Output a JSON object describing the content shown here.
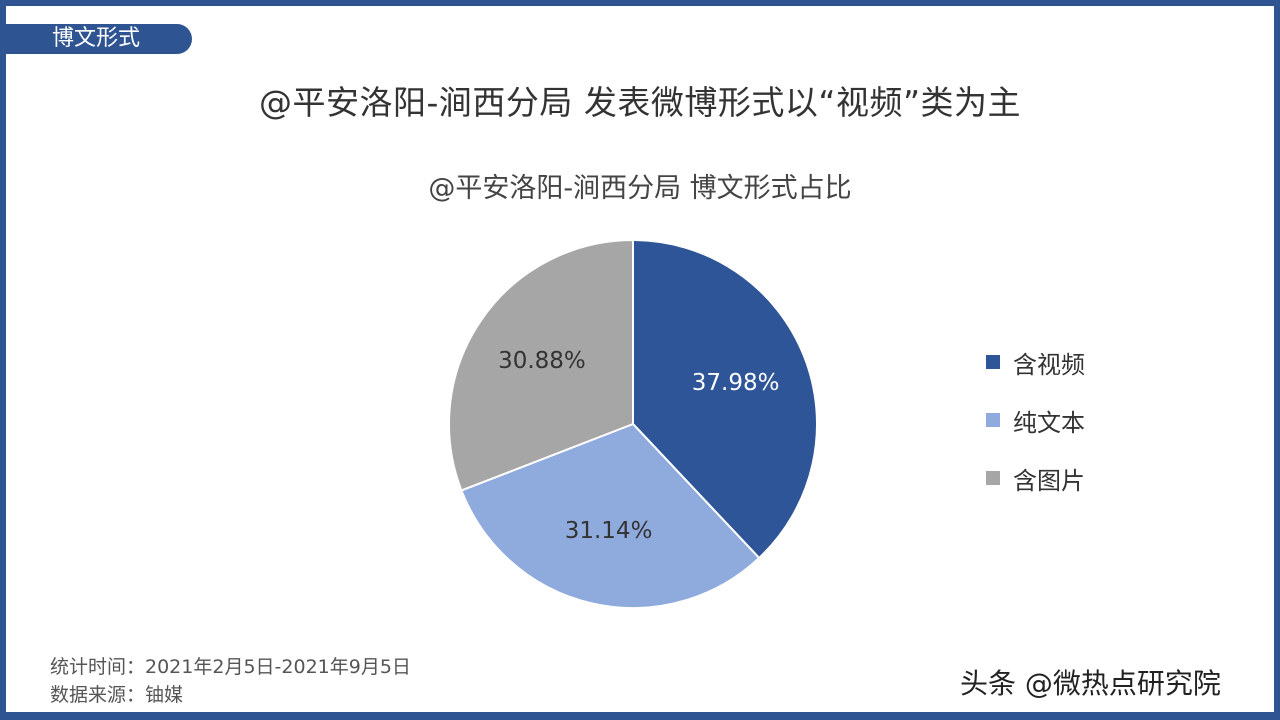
{
  "section_tag": "博文形式",
  "main_title": "@平安洛阳-涧西分局 发表微博形式以“视频”类为主",
  "chart_data": {
    "type": "pie",
    "title": "@平安洛阳-涧西分局 博文形式占比",
    "categories": [
      "含视频",
      "纯文本",
      "含图片"
    ],
    "values": [
      37.98,
      31.14,
      30.88
    ],
    "labels": [
      "37.98%",
      "31.14%",
      "30.88%"
    ],
    "colors": [
      "#2e5597",
      "#8faadc",
      "#a6a6a6"
    ],
    "label_colors": [
      "#ffffff",
      "#333333",
      "#333333"
    ],
    "legend_position": "right"
  },
  "footnotes": {
    "period": "统计时间：2021年2月5日-2021年9月5日",
    "source": "数据来源：铀媒"
  },
  "watermark": "头条 @微热点研究院"
}
